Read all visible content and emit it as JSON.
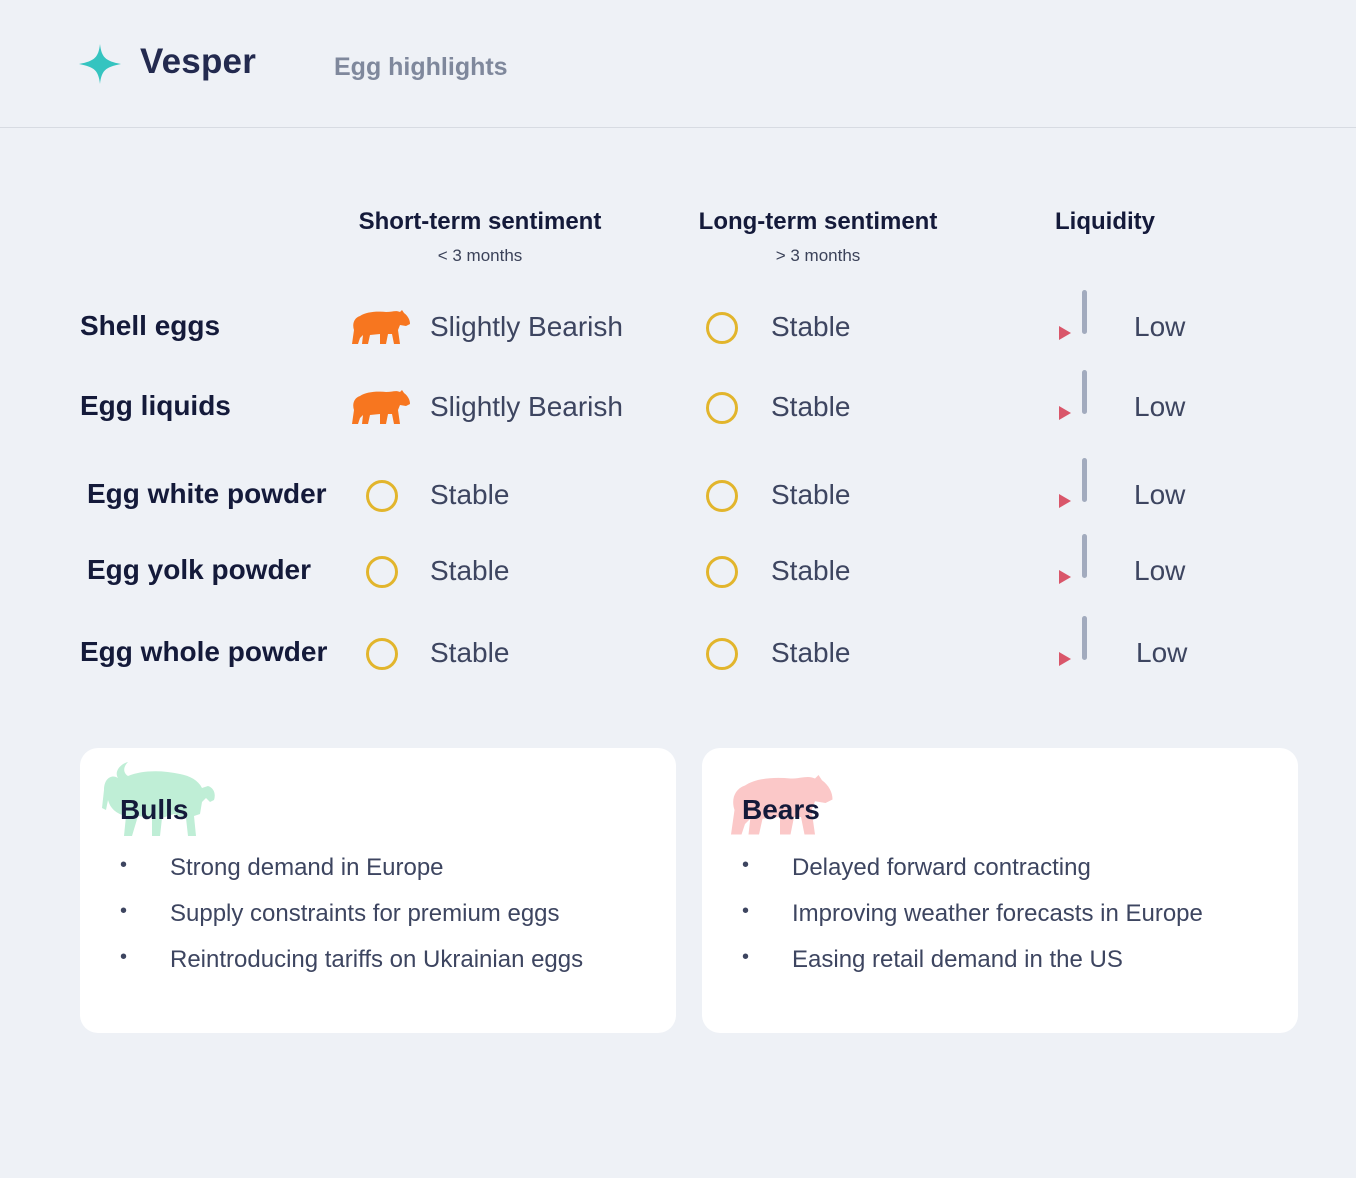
{
  "header": {
    "brand": "Vesper",
    "subtitle": "Egg highlights",
    "logo_icon": "sparkle-star-icon",
    "logo_color": "#35c4c0"
  },
  "columns": {
    "short": {
      "title": "Short-term sentiment",
      "sub": "< 3 months"
    },
    "long": {
      "title": "Long-term sentiment",
      "sub": "> 3 months"
    },
    "liquidity": {
      "title": "Liquidity"
    }
  },
  "rows": [
    {
      "label": "Shell eggs",
      "short": "Slightly Bearish",
      "short_icon": "bear-icon",
      "long": "Stable",
      "long_icon": "circle-icon",
      "liquidity": "Low",
      "liquidity_icon": "low-liquidity-icon"
    },
    {
      "label": "Egg liquids",
      "short": "Slightly Bearish",
      "short_icon": "bear-icon",
      "long": "Stable",
      "long_icon": "circle-icon",
      "liquidity": "Low",
      "liquidity_icon": "low-liquidity-icon"
    },
    {
      "label": "Egg white powder",
      "short": "Stable",
      "short_icon": "circle-icon",
      "long": "Stable",
      "long_icon": "circle-icon",
      "liquidity": "Low",
      "liquidity_icon": "low-liquidity-icon"
    },
    {
      "label": "Egg yolk powder",
      "short": "Stable",
      "short_icon": "circle-icon",
      "long": "Stable",
      "long_icon": "circle-icon",
      "liquidity": "Low",
      "liquidity_icon": "low-liquidity-icon"
    },
    {
      "label": "Egg whole powder",
      "short": "Stable",
      "short_icon": "circle-icon",
      "long": "Stable",
      "long_icon": "circle-icon",
      "liquidity": "Low",
      "liquidity_icon": "low-liquidity-icon"
    }
  ],
  "bulls": {
    "title": "Bulls",
    "icon": "bull-icon",
    "items": [
      "Strong demand in Europe",
      "Supply constraints for premium eggs",
      "Reintroducing tariffs on Ukrainian eggs"
    ]
  },
  "bears": {
    "title": "Bears",
    "icon": "bear-icon",
    "items": [
      "Delayed forward contracting",
      "Improving weather forecasts in Europe",
      "Easing retail demand in the US"
    ]
  },
  "colors": {
    "background": "#eef1f6",
    "bear_orange": "#f7761f",
    "stable_ring": "#e2b52c",
    "liquidity_bar": "#a2abbe",
    "liquidity_marker": "#d9566a",
    "bull_watermark": "#bfeed6",
    "bear_watermark": "#fbc8c8"
  }
}
